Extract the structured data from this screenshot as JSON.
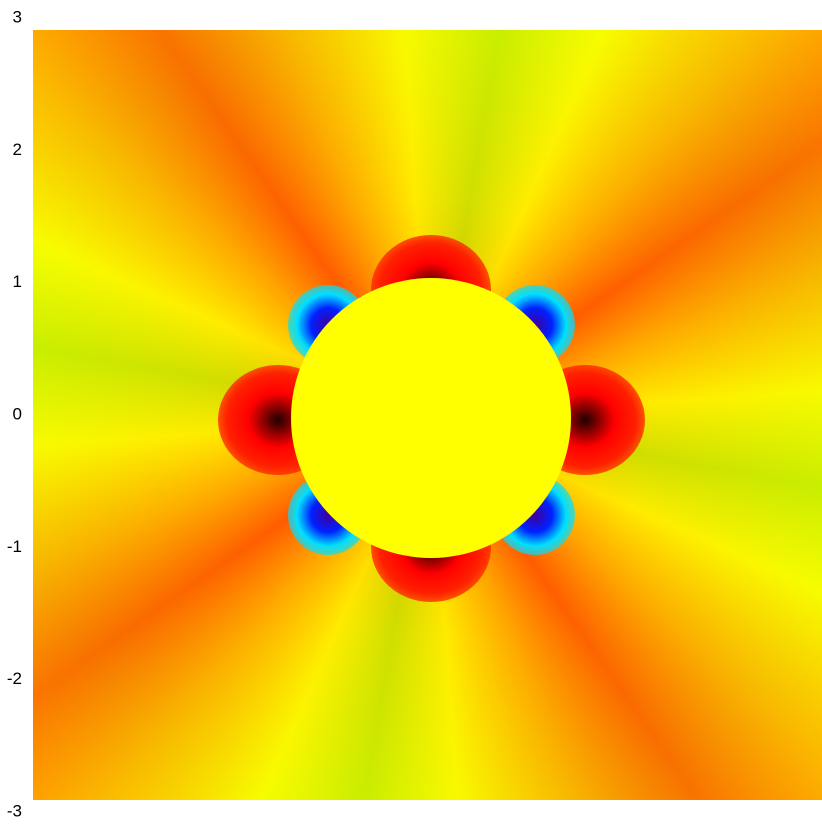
{
  "chart_data": {
    "type": "image",
    "ylim": [
      -3,
      3
    ],
    "yticks": [
      -3,
      -2,
      -1,
      0,
      1,
      2,
      3
    ]
  }
}
